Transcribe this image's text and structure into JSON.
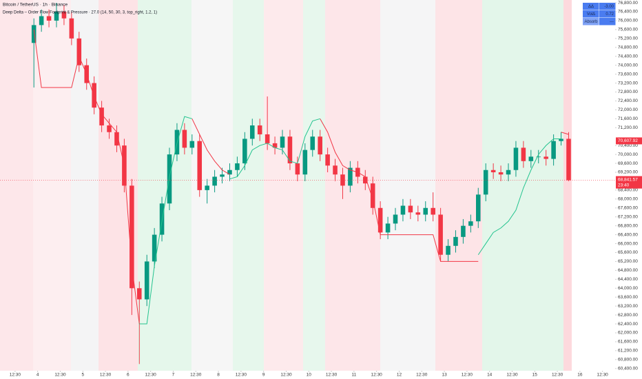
{
  "chart_data": {
    "type": "candlestick",
    "title": "Bitcoin / TetherUS · 1h · Binance",
    "subtitle": "Deep Delta – Order Flow Footprint & Pressure · 27.0 (14, 50, 30, 3, top_right, 1.2, 1)",
    "up_color": "#089981",
    "down_color": "#f23645",
    "x": [
      10,
      14,
      18,
      22,
      26,
      30,
      34,
      38,
      42,
      46,
      50,
      54,
      58,
      62,
      66,
      70,
      74,
      78,
      82,
      86,
      90,
      94,
      98,
      102,
      106,
      110,
      114,
      118,
      122,
      126,
      130,
      134,
      138,
      142,
      146,
      150,
      154,
      158,
      162,
      166,
      170,
      174,
      178,
      182,
      186,
      190,
      194,
      198,
      202,
      206,
      210,
      214,
      218,
      222,
      226,
      230,
      234,
      238,
      242,
      246,
      250,
      254,
      258,
      262,
      266,
      270,
      274,
      278,
      282,
      286,
      290,
      294
    ],
    "open": [
      75000,
      75800,
      76200,
      76000,
      76400,
      76100,
      75200,
      74000,
      73200,
      72100,
      71300,
      71000,
      70400,
      68600,
      64000,
      63500,
      65200,
      66400,
      67800,
      70000,
      71100,
      70300,
      70600,
      68400,
      68600,
      69000,
      69100,
      69300,
      69600,
      70700,
      71300,
      70900,
      70500,
      70300,
      70800,
      69600,
      69100,
      70200,
      70800,
      70000,
      69500,
      69100,
      68600,
      69400,
      69000,
      68700,
      67600,
      66500,
      66900,
      67300,
      67700,
      67400,
      67300,
      67600,
      67300,
      65500,
      65900,
      66300,
      66800,
      67000,
      68200,
      69300,
      69200,
      69100,
      69300,
      70300,
      69700,
      69900,
      69900,
      69800,
      70600,
      70700
    ],
    "high": [
      76100,
      76500,
      76500,
      76800,
      76700,
      76400,
      75500,
      74300,
      73500,
      72400,
      71600,
      71300,
      70700,
      68900,
      64300,
      65500,
      66700,
      68100,
      70300,
      71400,
      71400,
      70900,
      70900,
      68900,
      69300,
      69400,
      69600,
      69900,
      71000,
      71600,
      71600,
      72600,
      70800,
      71100,
      71100,
      69900,
      70500,
      71100,
      71100,
      70300,
      69800,
      69400,
      69700,
      69700,
      69300,
      69000,
      67900,
      67200,
      67600,
      68000,
      68000,
      67700,
      67900,
      68300,
      67600,
      66200,
      66600,
      67100,
      67300,
      68500,
      69600,
      69600,
      69500,
      69600,
      70600,
      70600,
      70200,
      70200,
      70200,
      70900,
      71000,
      71000
    ],
    "low": [
      73000,
      75500,
      75700,
      75700,
      75800,
      74900,
      73700,
      72900,
      71800,
      71000,
      70700,
      70100,
      68300,
      62800,
      60600,
      63200,
      64900,
      66100,
      67500,
      69700,
      70000,
      70000,
      68100,
      67800,
      68300,
      68700,
      68800,
      69000,
      69300,
      70400,
      70600,
      70200,
      70000,
      70000,
      69300,
      68800,
      68800,
      69900,
      69700,
      69200,
      68800,
      68000,
      68300,
      68700,
      68400,
      67300,
      66200,
      66200,
      66600,
      67000,
      67100,
      67000,
      67000,
      67000,
      65200,
      65200,
      65600,
      66000,
      66500,
      66700,
      67900,
      68900,
      68800,
      68800,
      69000,
      69400,
      69400,
      69600,
      69500,
      69500,
      70400,
      68800
    ],
    "close": [
      75800,
      76200,
      76000,
      76400,
      76100,
      75200,
      74000,
      73200,
      72100,
      71300,
      71000,
      70400,
      68600,
      64000,
      63500,
      65200,
      66400,
      67800,
      70000,
      71100,
      70300,
      70600,
      68400,
      68600,
      69000,
      69100,
      69300,
      69600,
      70700,
      71300,
      70900,
      70500,
      70300,
      70800,
      69600,
      69100,
      70200,
      70800,
      70000,
      69500,
      69100,
      68600,
      69400,
      69000,
      68700,
      67600,
      66500,
      66900,
      67300,
      67700,
      67400,
      67300,
      67600,
      67300,
      65500,
      65900,
      66300,
      66800,
      67000,
      68200,
      69300,
      69200,
      69100,
      69300,
      70300,
      69700,
      69900,
      69900,
      69800,
      70600,
      70700,
      68841.57
    ],
    "trail_down": {
      "color": "#f23645",
      "values": [
        75600,
        73000,
        73000,
        73000,
        73000,
        73000,
        74400,
        73600,
        72600,
        71800,
        71400,
        71000,
        69500,
        65000,
        62400,
        null,
        null,
        null,
        null,
        null,
        null,
        71600,
        70900,
        70200,
        69700,
        69300,
        69100,
        null,
        null,
        null,
        null,
        null,
        null,
        null,
        null,
        null,
        null,
        null,
        71600,
        71000,
        70100,
        69500,
        69300,
        69200,
        69000,
        68000,
        66400,
        66400,
        66400,
        66400,
        66400,
        66400,
        66400,
        66400,
        65200,
        65200,
        65200,
        65200,
        65200,
        65200,
        null,
        null,
        null,
        null,
        null,
        null,
        null,
        null,
        null,
        null,
        71000,
        70900
      ]
    },
    "trail_up": {
      "color": "#22c38e",
      "values": [
        null,
        null,
        null,
        null,
        null,
        null,
        null,
        null,
        null,
        null,
        null,
        null,
        null,
        null,
        62400,
        62400,
        65000,
        67000,
        69000,
        70500,
        71700,
        71600,
        null,
        null,
        null,
        null,
        68900,
        69000,
        69500,
        70200,
        70400,
        70500,
        70300,
        70200,
        69700,
        69600,
        70800,
        71500,
        71600,
        null,
        null,
        null,
        null,
        null,
        null,
        null,
        null,
        null,
        null,
        null,
        null,
        null,
        null,
        null,
        null,
        null,
        null,
        null,
        null,
        65500,
        66000,
        66500,
        66700,
        67000,
        67500,
        68500,
        69300,
        70000,
        70400,
        70700,
        70700,
        null
      ]
    },
    "last_price": {
      "value": 68841.57,
      "label": "68,841.57"
    },
    "countdown": "23:40",
    "marker_price": {
      "value": 70607.92,
      "label": "70,607.92"
    },
    "xlim": [
      -8,
      318.7
    ],
    "ylim": [
      60300,
      76925
    ],
    "grid": false,
    "xticks": [
      {
        "value": 0,
        "label": "12:30"
      },
      {
        "value": 12,
        "label": "4"
      },
      {
        "value": 24,
        "label": "12:30"
      },
      {
        "value": 36,
        "label": "5"
      },
      {
        "value": 48,
        "label": "12:30"
      },
      {
        "value": 60,
        "label": "6"
      },
      {
        "value": 72,
        "label": "12:30"
      },
      {
        "value": 84,
        "label": "7"
      },
      {
        "value": 96,
        "label": "12:30"
      },
      {
        "value": 108,
        "label": "8"
      },
      {
        "value": 120,
        "label": "12:30"
      },
      {
        "value": 132,
        "label": "9"
      },
      {
        "value": 144,
        "label": "12:30"
      },
      {
        "value": 156,
        "label": "10"
      },
      {
        "value": 168,
        "label": "12:30"
      },
      {
        "value": 180,
        "label": "11"
      },
      {
        "value": 192,
        "label": "12:30"
      },
      {
        "value": 204,
        "label": "12"
      },
      {
        "value": 216,
        "label": "12:30"
      },
      {
        "value": 228,
        "label": "13"
      },
      {
        "value": 240,
        "label": "12:30"
      },
      {
        "value": 252,
        "label": "14"
      },
      {
        "value": 264,
        "label": "12:30"
      },
      {
        "value": 276,
        "label": "15"
      },
      {
        "value": 288,
        "label": "12:30"
      },
      {
        "value": 300,
        "label": "16"
      },
      {
        "value": 312,
        "label": "12:30"
      }
    ],
    "yticks": [
      {
        "value": 60400,
        "label": "60,400.00"
      },
      {
        "value": 60800,
        "label": "60,800.00"
      },
      {
        "value": 61200,
        "label": "61,200.00"
      },
      {
        "value": 61600,
        "label": "61,600.00"
      },
      {
        "value": 62000,
        "label": "62,000.00"
      },
      {
        "value": 62400,
        "label": "62,400.00"
      },
      {
        "value": 62800,
        "label": "62,800.00"
      },
      {
        "value": 63200,
        "label": "63,200.00"
      },
      {
        "value": 63600,
        "label": "63,600.00"
      },
      {
        "value": 64000,
        "label": "64,000.00"
      },
      {
        "value": 64400,
        "label": "64,400.00"
      },
      {
        "value": 64800,
        "label": "64,800.00"
      },
      {
        "value": 65200,
        "label": "65,200.00"
      },
      {
        "value": 65600,
        "label": "65,600.00"
      },
      {
        "value": 66000,
        "label": "66,000.00"
      },
      {
        "value": 66400,
        "label": "66,400.00"
      },
      {
        "value": 66800,
        "label": "66,800.00"
      },
      {
        "value": 67200,
        "label": "67,200.00"
      },
      {
        "value": 67600,
        "label": "67,600.00"
      },
      {
        "value": 68000,
        "label": "68,000.00"
      },
      {
        "value": 68400,
        "label": "68,400.00"
      },
      {
        "value": 69200,
        "label": "69,200.00"
      },
      {
        "value": 69600,
        "label": "69,600.00"
      },
      {
        "value": 70000,
        "label": "70,000.00"
      },
      {
        "value": 70400,
        "label": "70,400.00"
      },
      {
        "value": 71200,
        "label": "71,200.00"
      },
      {
        "value": 71600,
        "label": "71,600.00"
      },
      {
        "value": 72000,
        "label": "72,000.00"
      },
      {
        "value": 72400,
        "label": "72,400.00"
      },
      {
        "value": 72800,
        "label": "72,800.00"
      },
      {
        "value": 73200,
        "label": "73,200.00"
      },
      {
        "value": 73600,
        "label": "73,600.00"
      },
      {
        "value": 74000,
        "label": "74,000.00"
      },
      {
        "value": 74400,
        "label": "74,400.00"
      },
      {
        "value": 74800,
        "label": "74,800.00"
      },
      {
        "value": 75200,
        "label": "75,200.00"
      },
      {
        "value": 75600,
        "label": "75,600.00"
      },
      {
        "value": 76000,
        "label": "76,000.00"
      },
      {
        "value": 76400,
        "label": "76,400.00"
      },
      {
        "value": 76800,
        "label": "76,800.00"
      }
    ],
    "table": {
      "rows": [
        [
          "ΔΔ",
          "-3.00"
        ],
        [
          "VolΔ",
          "0.72"
        ],
        [
          "Absorb",
          "---"
        ]
      ]
    }
  }
}
